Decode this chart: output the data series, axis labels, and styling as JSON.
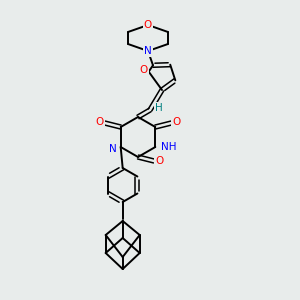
{
  "bg_color": "#e8eceb",
  "atom_colors": {
    "O": "#ff0000",
    "N": "#0000ff",
    "C": "#000000",
    "H": "#008080"
  },
  "fig_width": 3.0,
  "fig_height": 3.0,
  "dpi": 100
}
